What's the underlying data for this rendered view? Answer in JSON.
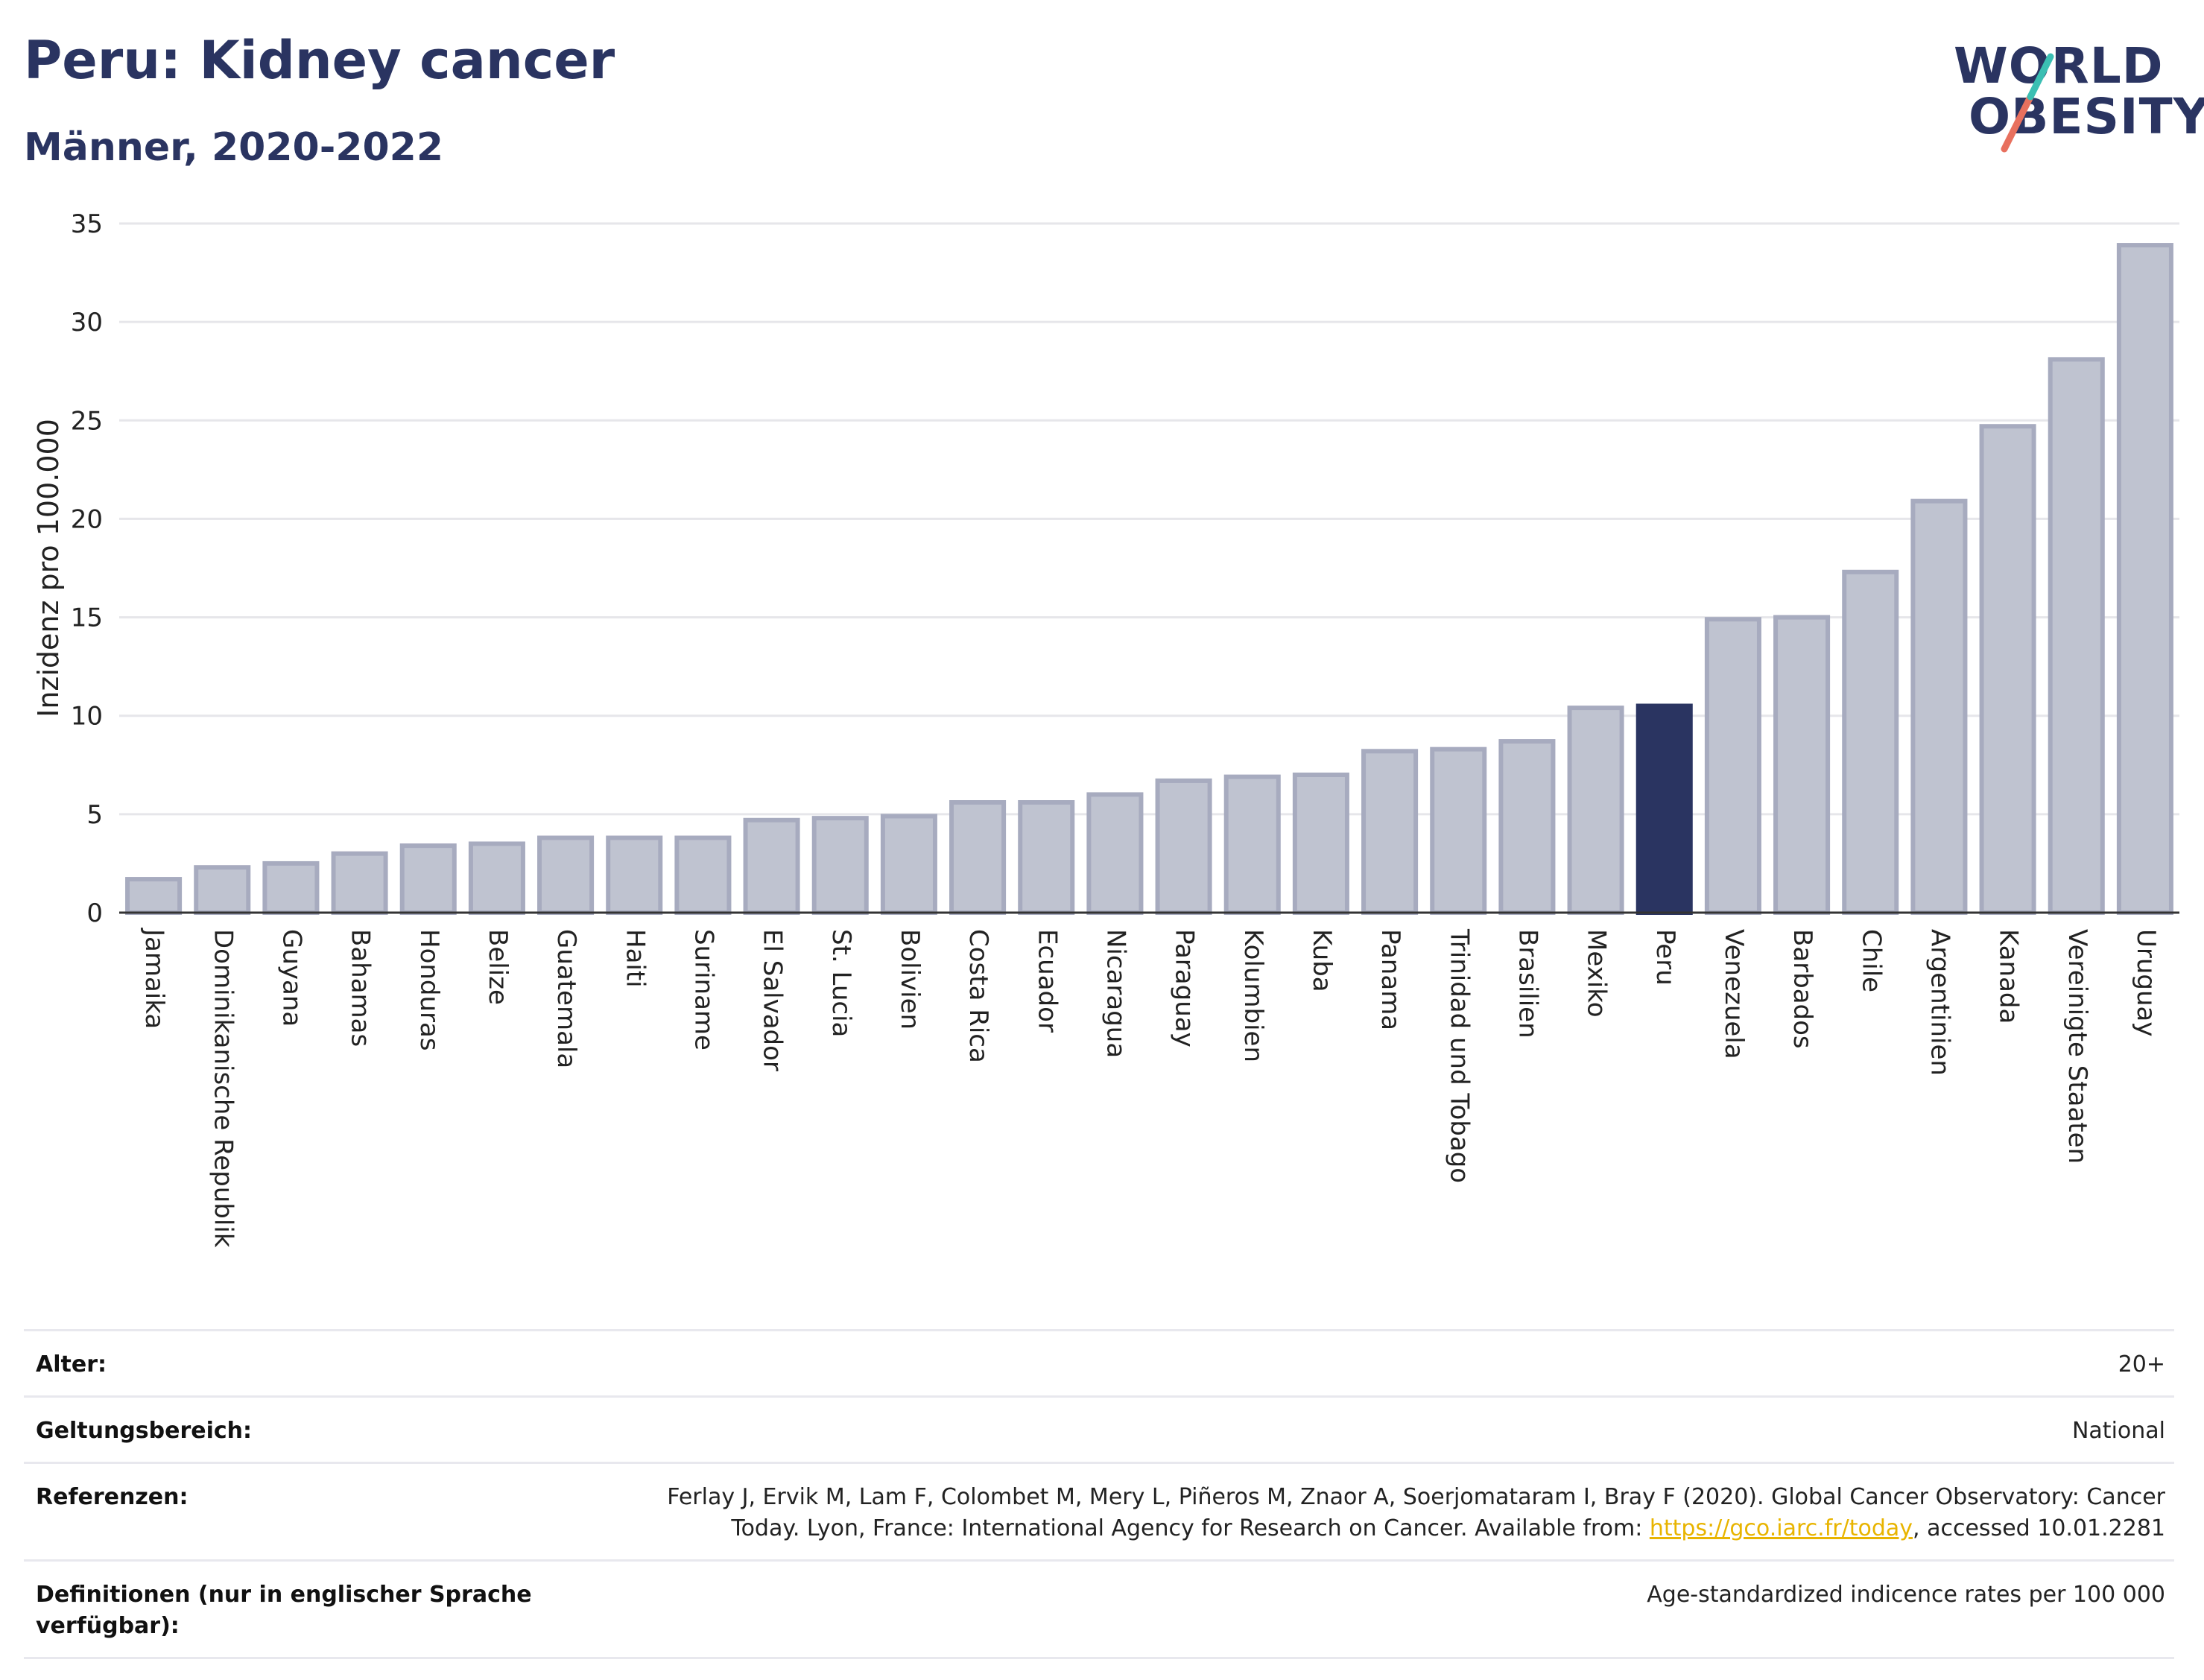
{
  "header": {
    "title": "Peru: Kidney cancer",
    "subtitle": "Männer, 2020-2022",
    "logo_line1": "WORLD",
    "logo_line2": "OBESITY"
  },
  "colors": {
    "highlight": "#2a3461",
    "bar_fill": "#bfc3d0",
    "bar_stroke": "#a7abbf",
    "logo_teal": "#3bbfb3",
    "logo_coral": "#e8705e",
    "link": "#e8b400"
  },
  "chart_data": {
    "type": "bar",
    "ylabel": "Inzidenz pro 100.000",
    "ylim": [
      0,
      35
    ],
    "yticks": [
      0,
      5,
      10,
      15,
      20,
      25,
      30,
      35
    ],
    "grid": true,
    "highlight": "Peru",
    "categories": [
      "Jamaika",
      "Dominikanische Republik",
      "Guyana",
      "Bahamas",
      "Honduras",
      "Belize",
      "Guatemala",
      "Haiti",
      "Suriname",
      "El Salvador",
      "St. Lucia",
      "Bolivien",
      "Costa Rica",
      "Ecuador",
      "Nicaragua",
      "Paraguay",
      "Kolumbien",
      "Kuba",
      "Panama",
      "Trinidad und Tobago",
      "Brasilien",
      "Mexiko",
      "Peru",
      "Venezuela",
      "Barbados",
      "Chile",
      "Argentinien",
      "Kanada",
      "Vereinigte Staaten",
      "Uruguay"
    ],
    "values": [
      1.7,
      2.3,
      2.5,
      3.0,
      3.4,
      3.5,
      3.8,
      3.8,
      3.8,
      4.7,
      4.8,
      4.9,
      5.6,
      5.6,
      6.0,
      6.7,
      6.9,
      7.0,
      8.2,
      8.3,
      8.7,
      10.4,
      10.5,
      14.9,
      15.0,
      17.3,
      20.9,
      24.7,
      28.1,
      33.9
    ]
  },
  "meta": {
    "age_label": "Alter:",
    "age_value": "20+",
    "scope_label": "Geltungsbereich:",
    "scope_value": "National",
    "ref_label": "Referenzen:",
    "ref_text_1": "Ferlay J, Ervik M, Lam F, Colombet M, Mery L, Piñeros M, Znaor A, Soerjomataram I, Bray F (2020). Global Cancer Observatory: Cancer Today. Lyon, France: International Agency for Research on Cancer. Available from: ",
    "ref_link": "https://gco.iarc.fr/today",
    "ref_text_2": ", accessed 10.01.2281",
    "def_label": "Definitionen (nur in englischer Sprache verfügbar):",
    "def_value": "Age-standardized indicence rates per 100 000"
  }
}
